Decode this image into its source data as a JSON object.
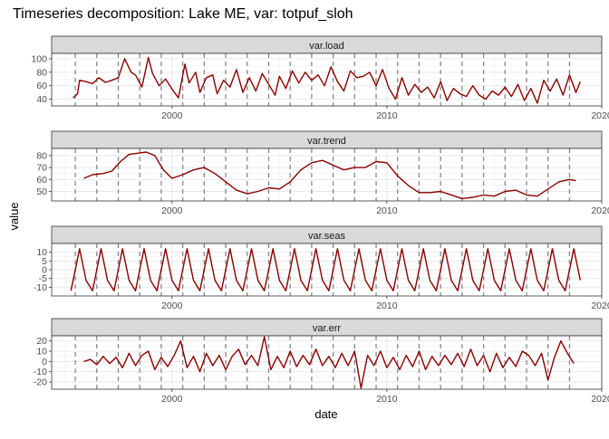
{
  "chart_data": {
    "type": "line",
    "title": "Timeseries decomposition: Lake ME, var: totpuf_sloh",
    "xlabel": "date",
    "ylabel": "value",
    "line_color": "#8B0000",
    "x_range": [
      1994.4,
      2020.0
    ],
    "x_ticks": [
      2000,
      2010,
      2020
    ],
    "x_tick_labels": [
      "2000",
      "2010",
      "2020"
    ],
    "dashed_vertical_lines": [
      1995.5,
      1996.5,
      1997.5,
      1998.5,
      1999.5,
      2000.5,
      2001.5,
      2002.5,
      2003.5,
      2004.5,
      2005.5,
      2006.5,
      2007.5,
      2008.5,
      2009.5,
      2010.5,
      2011.5,
      2012.5,
      2013.5,
      2014.5,
      2015.5,
      2016.5,
      2017.5,
      2018.5
    ],
    "panels": [
      {
        "strip": "var.load",
        "ylim": [
          30,
          108
        ],
        "y_ticks": [
          40,
          60,
          80,
          100
        ],
        "y_tick_labels": [
          "40",
          "60",
          "80",
          "100"
        ],
        "x": [
          1995.4,
          1995.6,
          1995.7,
          1996.0,
          1996.3,
          1996.6,
          1996.9,
          1997.2,
          1997.5,
          1997.8,
          1998.1,
          1998.3,
          1998.6,
          1998.9,
          1999.1,
          1999.4,
          1999.7,
          2000.0,
          2000.3,
          2000.6,
          2000.8,
          2001.1,
          2001.3,
          2001.6,
          2001.9,
          2002.1,
          2002.4,
          2002.7,
          2003.0,
          2003.3,
          2003.6,
          2003.9,
          2004.2,
          2004.5,
          2004.8,
          2005.0,
          2005.3,
          2005.6,
          2005.9,
          2006.2,
          2006.5,
          2006.8,
          2007.1,
          2007.4,
          2007.7,
          2008.0,
          2008.3,
          2008.6,
          2008.9,
          2009.2,
          2009.5,
          2009.8,
          2010.1,
          2010.4,
          2010.7,
          2011.0,
          2011.3,
          2011.6,
          2011.9,
          2012.2,
          2012.5,
          2012.8,
          2013.1,
          2013.4,
          2013.7,
          2014.0,
          2014.3,
          2014.6,
          2014.9,
          2015.2,
          2015.5,
          2015.8,
          2016.1,
          2016.4,
          2016.7,
          2017.0,
          2017.3,
          2017.6,
          2017.9,
          2018.2,
          2018.5,
          2018.8,
          2019.0
        ],
        "values": [
          42,
          48,
          68,
          66,
          63,
          72,
          65,
          68,
          72,
          100,
          80,
          76,
          58,
          102,
          78,
          60,
          70,
          55,
          42,
          92,
          64,
          80,
          50,
          72,
          76,
          48,
          68,
          58,
          84,
          50,
          72,
          52,
          78,
          62,
          46,
          74,
          56,
          82,
          64,
          80,
          68,
          76,
          60,
          88,
          66,
          52,
          82,
          72,
          74,
          80,
          60,
          84,
          56,
          40,
          72,
          46,
          62,
          50,
          58,
          42,
          66,
          38,
          56,
          48,
          44,
          60,
          46,
          40,
          52,
          46,
          58,
          44,
          62,
          38,
          56,
          34,
          68,
          52,
          70,
          46,
          76,
          50,
          66
        ]
      },
      {
        "strip": "var.trend",
        "ylim": [
          42,
          86
        ],
        "y_ticks": [
          50,
          60,
          70,
          80
        ],
        "y_tick_labels": [
          "50",
          "60",
          "70",
          "80"
        ],
        "x": [
          1995.9,
          1996.3,
          1996.8,
          1997.2,
          1997.6,
          1998.0,
          1998.4,
          1998.8,
          1999.2,
          1999.6,
          2000.0,
          2000.5,
          2001.0,
          2001.5,
          2002.0,
          2002.5,
          2003.0,
          2003.5,
          2004.0,
          2004.5,
          2005.0,
          2005.5,
          2006.0,
          2006.5,
          2007.0,
          2007.5,
          2008.0,
          2008.5,
          2009.0,
          2009.5,
          2010.0,
          2010.5,
          2011.0,
          2011.5,
          2012.0,
          2012.5,
          2013.0,
          2013.5,
          2014.0,
          2014.5,
          2015.0,
          2015.5,
          2016.0,
          2016.5,
          2017.0,
          2017.5,
          2018.0,
          2018.5,
          2018.8
        ],
        "values": [
          61,
          64,
          65,
          67,
          75,
          81,
          82,
          83,
          80,
          68,
          61,
          64,
          68,
          70,
          65,
          58,
          51,
          48,
          50,
          53,
          52,
          58,
          68,
          74,
          76,
          72,
          68,
          70,
          70,
          75,
          74,
          63,
          55,
          49,
          49,
          50,
          47,
          44,
          45,
          47,
          46,
          50,
          51,
          47,
          46,
          52,
          58,
          60,
          59
        ]
      },
      {
        "strip": "var.seas",
        "ylim": [
          -15,
          15
        ],
        "y_ticks": [
          -10,
          -5,
          0,
          5,
          10
        ],
        "y_tick_labels": [
          "-10",
          "-5",
          "0",
          "5",
          "10"
        ],
        "x": [
          1995.3,
          1995.5,
          1995.7,
          1995.9,
          1996.0,
          1996.3
        ],
        "values": [
          -12,
          0,
          12,
          0,
          -6,
          -12
        ],
        "seasonal_period": 1,
        "x_start": 1995.3,
        "x_end": 2019.0
      },
      {
        "strip": "var.err",
        "ylim": [
          -27,
          25
        ],
        "y_ticks": [
          -20,
          -10,
          0,
          10,
          20
        ],
        "y_tick_labels": [
          "-20",
          "-10",
          "0",
          "10",
          "20"
        ],
        "x": [
          1995.9,
          1996.2,
          1996.5,
          1996.8,
          1997.1,
          1997.4,
          1997.7,
          1998.0,
          1998.3,
          1998.6,
          1998.9,
          1999.2,
          1999.5,
          1999.8,
          2000.1,
          2000.4,
          2000.7,
          2001.0,
          2001.3,
          2001.6,
          2001.9,
          2002.2,
          2002.5,
          2002.8,
          2003.1,
          2003.4,
          2003.7,
          2004.0,
          2004.3,
          2004.6,
          2004.9,
          2005.2,
          2005.5,
          2005.8,
          2006.1,
          2006.4,
          2006.7,
          2007.0,
          2007.3,
          2007.6,
          2007.9,
          2008.2,
          2008.5,
          2008.8,
          2009.1,
          2009.4,
          2009.7,
          2010.0,
          2010.3,
          2010.6,
          2010.9,
          2011.2,
          2011.5,
          2011.8,
          2012.1,
          2012.4,
          2012.7,
          2013.0,
          2013.3,
          2013.6,
          2013.9,
          2014.2,
          2014.5,
          2014.8,
          2015.1,
          2015.4,
          2015.7,
          2016.0,
          2016.3,
          2016.6,
          2016.9,
          2017.2,
          2017.5,
          2017.8,
          2018.1,
          2018.4,
          2018.7
        ],
        "values": [
          0,
          2,
          -3,
          5,
          -2,
          4,
          -6,
          8,
          -4,
          6,
          10,
          -8,
          4,
          -5,
          6,
          20,
          -6,
          5,
          -10,
          8,
          -4,
          6,
          -8,
          5,
          12,
          -3,
          6,
          -4,
          24,
          -8,
          5,
          -6,
          10,
          -5,
          6,
          -3,
          12,
          -4,
          5,
          -6,
          8,
          -4,
          10,
          -26,
          6,
          -4,
          10,
          -6,
          4,
          -8,
          6,
          -5,
          10,
          -8,
          5,
          -4,
          6,
          -3,
          8,
          -5,
          12,
          -4,
          6,
          -10,
          8,
          -6,
          4,
          -5,
          10,
          6,
          -4,
          8,
          -18,
          4,
          20,
          8,
          -2
        ]
      }
    ]
  }
}
